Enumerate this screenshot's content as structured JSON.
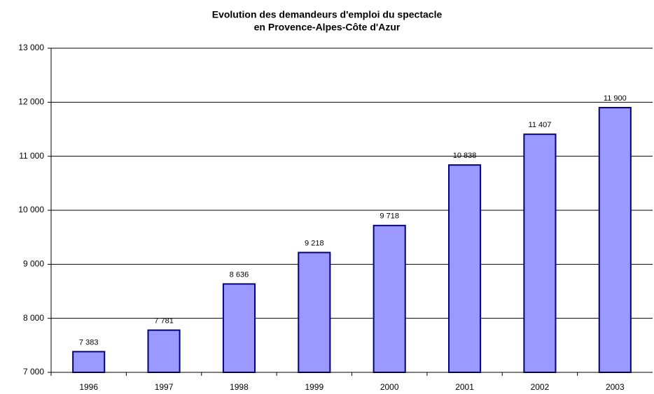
{
  "chart_data": {
    "type": "bar",
    "title": [
      "Evolution des demandeurs d'emploi du spectacle",
      "en Provence-Alpes-Côte d'Azur"
    ],
    "categories": [
      "1996",
      "1997",
      "1998",
      "1999",
      "2000",
      "2001",
      "2002",
      "2003"
    ],
    "values": [
      7383,
      7781,
      8636,
      9218,
      9718,
      10838,
      11407,
      11900
    ],
    "value_labels": [
      "7 383",
      "7 781",
      "8 636",
      "9 218",
      "9 718",
      "10 838",
      "11 407",
      "11 900"
    ],
    "color": "#9999ff",
    "edge_color": "#000080",
    "ylim": [
      7000,
      13000
    ],
    "yticks": [
      {
        "value": 7000,
        "label": "7 000"
      },
      {
        "value": 8000,
        "label": "8 000"
      },
      {
        "value": 9000,
        "label": "9 000"
      },
      {
        "value": 10000,
        "label": "10 000"
      },
      {
        "value": 11000,
        "label": "11 000"
      },
      {
        "value": 12000,
        "label": "12 000"
      },
      {
        "value": 13000,
        "label": "13 000"
      }
    ],
    "grid": true
  }
}
